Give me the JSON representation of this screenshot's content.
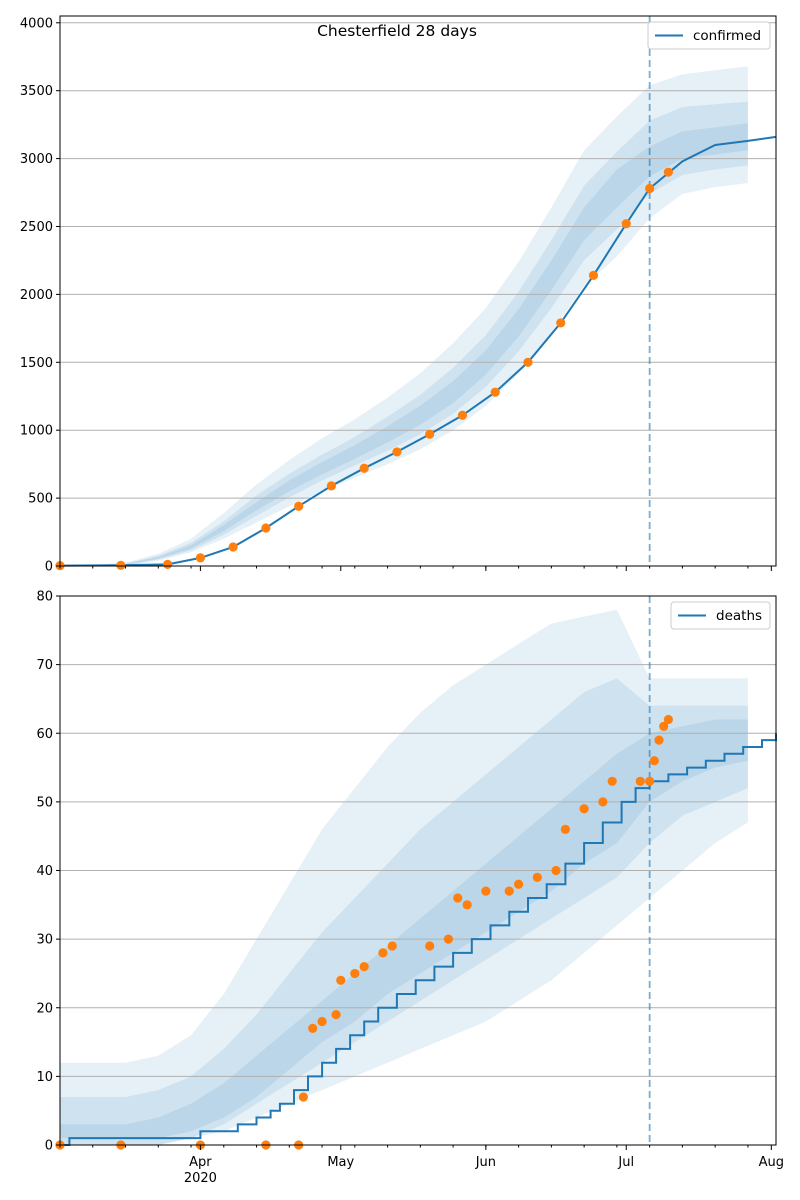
{
  "chart_data": [
    {
      "type": "line",
      "title": "Chesterfield 28 days",
      "xlim": [
        "2020-03-02",
        "2020-08-02"
      ],
      "ylim": [
        0,
        4050
      ],
      "yticks": [
        0,
        500,
        1000,
        1500,
        2000,
        2500,
        3000,
        3500,
        4000
      ],
      "grid": "y",
      "legend": "top-right",
      "forecast_start": "2020-07-06",
      "series": [
        {
          "name": "confirmed",
          "kind": "line",
          "color": "#1f77b4",
          "points": [
            [
              "2020-03-02",
              3
            ],
            [
              "2020-03-15",
              5
            ],
            [
              "2020-03-25",
              12
            ],
            [
              "2020-04-01",
              60
            ],
            [
              "2020-04-08",
              140
            ],
            [
              "2020-04-15",
              280
            ],
            [
              "2020-04-22",
              440
            ],
            [
              "2020-04-29",
              590
            ],
            [
              "2020-05-06",
              720
            ],
            [
              "2020-05-13",
              840
            ],
            [
              "2020-05-20",
              970
            ],
            [
              "2020-05-27",
              1110
            ],
            [
              "2020-06-03",
              1280
            ],
            [
              "2020-06-10",
              1500
            ],
            [
              "2020-06-17",
              1790
            ],
            [
              "2020-06-24",
              2140
            ],
            [
              "2020-07-01",
              2520
            ],
            [
              "2020-07-06",
              2780
            ],
            [
              "2020-07-13",
              2980
            ],
            [
              "2020-07-20",
              3100
            ],
            [
              "2020-07-27",
              3130
            ],
            [
              "2020-08-02",
              3160
            ]
          ]
        },
        {
          "name": "",
          "kind": "scatter",
          "color": "#ff7f0e",
          "points": [
            [
              "2020-03-02",
              3
            ],
            [
              "2020-03-15",
              5
            ],
            [
              "2020-03-25",
              12
            ],
            [
              "2020-04-01",
              60
            ],
            [
              "2020-04-08",
              140
            ],
            [
              "2020-04-15",
              280
            ],
            [
              "2020-04-22",
              440
            ],
            [
              "2020-04-29",
              590
            ],
            [
              "2020-05-06",
              720
            ],
            [
              "2020-05-13",
              840
            ],
            [
              "2020-05-20",
              970
            ],
            [
              "2020-05-27",
              1110
            ],
            [
              "2020-06-03",
              1280
            ],
            [
              "2020-06-10",
              1500
            ],
            [
              "2020-06-17",
              1790
            ],
            [
              "2020-06-24",
              2140
            ],
            [
              "2020-07-01",
              2520
            ],
            [
              "2020-07-06",
              2780
            ],
            [
              "2020-07-10",
              2900
            ]
          ]
        }
      ],
      "bands": [
        {
          "lower": [
            0,
            0,
            0,
            40,
            100,
            200,
            320,
            440,
            550,
            650,
            750,
            860,
            1000,
            1180,
            1420,
            1720,
            2060,
            2280,
            2560,
            2740,
            2790,
            2820
          ],
          "upper": [
            6,
            10,
            25,
            90,
            200,
            390,
            600,
            780,
            940,
            1080,
            1240,
            1420,
            1640,
            1900,
            2240,
            2640,
            3060,
            3310,
            3540,
            3620,
            3650,
            3680
          ]
        },
        {
          "lower": [
            1,
            2,
            5,
            48,
            115,
            230,
            370,
            505,
            630,
            740,
            850,
            970,
            1120,
            1320,
            1580,
            1900,
            2250,
            2480,
            2740,
            2880,
            2920,
            2950
          ],
          "upper": [
            5,
            8,
            18,
            75,
            170,
            330,
            520,
            680,
            820,
            950,
            1100,
            1260,
            1460,
            1700,
            2020,
            2400,
            2800,
            3050,
            3280,
            3380,
            3400,
            3420
          ]
        },
        {
          "lower": [
            2,
            4,
            9,
            55,
            128,
            258,
            410,
            550,
            675,
            790,
            910,
            1040,
            1200,
            1410,
            1690,
            2030,
            2400,
            2640,
            2870,
            3000,
            3030,
            3060
          ],
          "upper": [
            4,
            6,
            15,
            66,
            152,
            302,
            470,
            630,
            765,
            890,
            1030,
            1180,
            1360,
            1590,
            1890,
            2250,
            2640,
            2920,
            3090,
            3200,
            3230,
            3260
          ]
        }
      ]
    },
    {
      "type": "line",
      "title": "",
      "xlim": [
        "2020-03-02",
        "2020-08-02"
      ],
      "ylim": [
        0,
        80
      ],
      "yticks": [
        0,
        10,
        20,
        30,
        40,
        50,
        60,
        70,
        80
      ],
      "xticks": [
        "2020-04-01",
        "2020-05-01",
        "2020-06-01",
        "2020-07-01",
        "2020-08-01"
      ],
      "xticklabels": [
        "Apr",
        "May",
        "Jun",
        "Jul",
        "Aug"
      ],
      "xsublabel": "2020",
      "grid": "y",
      "legend": "top-right",
      "forecast_start": "2020-07-06",
      "series": [
        {
          "name": "deaths",
          "kind": "line",
          "color": "#1f77b4",
          "points": [
            [
              "2020-03-02",
              0
            ],
            [
              "2020-03-04",
              1
            ],
            [
              "2020-03-30",
              1
            ],
            [
              "2020-04-01",
              2
            ],
            [
              "2020-04-08",
              2
            ],
            [
              "2020-04-09",
              3
            ],
            [
              "2020-04-12",
              3
            ],
            [
              "2020-04-13",
              4
            ],
            [
              "2020-04-16",
              5
            ],
            [
              "2020-04-18",
              6
            ],
            [
              "2020-04-21",
              8
            ],
            [
              "2020-04-24",
              10
            ],
            [
              "2020-04-27",
              12
            ],
            [
              "2020-04-30",
              14
            ],
            [
              "2020-05-03",
              16
            ],
            [
              "2020-05-06",
              18
            ],
            [
              "2020-05-09",
              20
            ],
            [
              "2020-05-13",
              22
            ],
            [
              "2020-05-17",
              24
            ],
            [
              "2020-05-21",
              26
            ],
            [
              "2020-05-25",
              28
            ],
            [
              "2020-05-29",
              30
            ],
            [
              "2020-06-02",
              32
            ],
            [
              "2020-06-06",
              34
            ],
            [
              "2020-06-10",
              36
            ],
            [
              "2020-06-14",
              38
            ],
            [
              "2020-06-18",
              41
            ],
            [
              "2020-06-22",
              44
            ],
            [
              "2020-06-26",
              47
            ],
            [
              "2020-06-30",
              50
            ],
            [
              "2020-07-03",
              52
            ],
            [
              "2020-07-06",
              53
            ],
            [
              "2020-07-10",
              54
            ],
            [
              "2020-07-14",
              55
            ],
            [
              "2020-07-18",
              56
            ],
            [
              "2020-07-22",
              57
            ],
            [
              "2020-07-26",
              58
            ],
            [
              "2020-07-30",
              59
            ],
            [
              "2020-08-02",
              60
            ]
          ]
        },
        {
          "name": "",
          "kind": "scatter",
          "color": "#ff7f0e",
          "points": [
            [
              "2020-03-02",
              0
            ],
            [
              "2020-03-15",
              0
            ],
            [
              "2020-04-01",
              0
            ],
            [
              "2020-04-15",
              0
            ],
            [
              "2020-04-22",
              0
            ],
            [
              "2020-04-23",
              7
            ],
            [
              "2020-04-25",
              17
            ],
            [
              "2020-04-27",
              18
            ],
            [
              "2020-04-30",
              19
            ],
            [
              "2020-05-01",
              24
            ],
            [
              "2020-05-04",
              25
            ],
            [
              "2020-05-06",
              26
            ],
            [
              "2020-05-10",
              28
            ],
            [
              "2020-05-12",
              29
            ],
            [
              "2020-05-20",
              29
            ],
            [
              "2020-05-24",
              30
            ],
            [
              "2020-05-26",
              36
            ],
            [
              "2020-05-28",
              35
            ],
            [
              "2020-06-01",
              37
            ],
            [
              "2020-06-06",
              37
            ],
            [
              "2020-06-08",
              38
            ],
            [
              "2020-06-12",
              39
            ],
            [
              "2020-06-16",
              40
            ],
            [
              "2020-06-18",
              46
            ],
            [
              "2020-06-22",
              49
            ],
            [
              "2020-06-26",
              50
            ],
            [
              "2020-06-28",
              53
            ],
            [
              "2020-07-04",
              53
            ],
            [
              "2020-07-06",
              53
            ],
            [
              "2020-07-07",
              56
            ],
            [
              "2020-07-08",
              59
            ],
            [
              "2020-07-09",
              61
            ],
            [
              "2020-07-10",
              62
            ]
          ]
        }
      ],
      "bands": [
        {
          "lower": [
            0,
            0,
            0,
            0,
            1,
            2,
            4,
            6,
            8,
            10,
            12,
            14,
            16,
            18,
            21,
            24,
            28,
            32,
            36,
            40,
            44,
            47
          ],
          "upper": [
            12,
            12,
            12,
            13,
            16,
            22,
            30,
            38,
            46,
            52,
            58,
            63,
            67,
            70,
            73,
            76,
            77,
            78,
            68,
            68,
            68,
            68
          ]
        },
        {
          "lower": [
            0,
            0,
            0,
            0,
            1,
            3,
            6,
            9,
            12,
            15,
            18,
            21,
            24,
            27,
            30,
            33,
            36,
            39,
            44,
            48,
            50,
            52
          ],
          "upper": [
            7,
            7,
            7,
            8,
            10,
            14,
            19,
            25,
            31,
            36,
            41,
            46,
            50,
            54,
            58,
            62,
            66,
            68,
            64,
            64,
            64,
            64
          ]
        },
        {
          "lower": [
            1,
            1,
            1,
            1,
            2,
            4,
            7,
            11,
            15,
            18,
            22,
            25,
            28,
            31,
            34,
            37,
            41,
            44,
            50,
            53,
            55,
            56
          ],
          "upper": [
            3,
            3,
            3,
            4,
            6,
            9,
            13,
            17,
            21,
            25,
            29,
            33,
            37,
            41,
            45,
            49,
            53,
            57,
            60,
            61,
            62,
            62
          ]
        }
      ]
    }
  ]
}
